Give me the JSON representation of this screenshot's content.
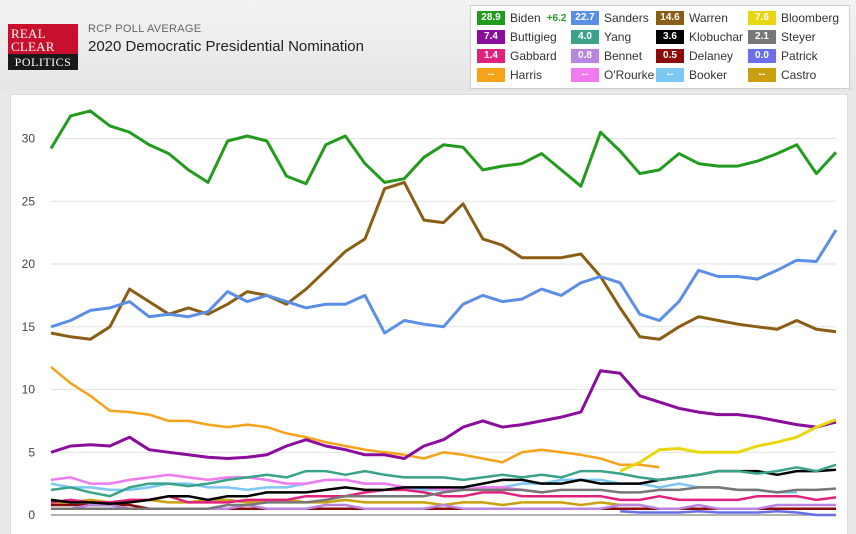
{
  "header": {
    "kicker": "RCP POLL AVERAGE",
    "title": "2020 Democratic Presidential Nomination",
    "logo_line1": "REAL",
    "logo_line2": "CLEAR",
    "logo_line3": "POLITICS"
  },
  "legend": [
    {
      "name": "Biden",
      "value": "28.9",
      "change": "+6.2",
      "color": "#239b1e"
    },
    {
      "name": "Sanders",
      "value": "22.7",
      "color": "#5b8fe6"
    },
    {
      "name": "Warren",
      "value": "14.6",
      "color": "#8b5e15"
    },
    {
      "name": "Bloomberg",
      "value": "7.6",
      "color": "#e8d70f"
    },
    {
      "name": "Buttigieg",
      "value": "7.4",
      "color": "#8a0d9b"
    },
    {
      "name": "Yang",
      "value": "4.0",
      "color": "#3aa38a"
    },
    {
      "name": "Klobuchar",
      "value": "3.6",
      "color": "#000000"
    },
    {
      "name": "Steyer",
      "value": "2.1",
      "color": "#777777"
    },
    {
      "name": "Gabbard",
      "value": "1.4",
      "color": "#e0227d"
    },
    {
      "name": "Bennet",
      "value": "0.8",
      "color": "#b985e0"
    },
    {
      "name": "Delaney",
      "value": "0.5",
      "color": "#8b0a0a"
    },
    {
      "name": "Patrick",
      "value": "0.0",
      "color": "#6a6fe8"
    },
    {
      "name": "Harris",
      "value": "--",
      "color": "#f7a21b"
    },
    {
      "name": "O'Rourke",
      "value": "--",
      "color": "#f07af0"
    },
    {
      "name": "Booker",
      "value": "--",
      "color": "#7cc8f2"
    },
    {
      "name": "Castro",
      "value": "--",
      "color": "#c9a00e"
    }
  ],
  "chart_data": {
    "type": "line",
    "ylim": [
      0,
      33
    ],
    "yticks": [
      "0",
      "5",
      "10",
      "15",
      "20",
      "25",
      "30"
    ],
    "grid": true,
    "legend_position": "top-right",
    "x": [
      0,
      1,
      2,
      3,
      4,
      5,
      6,
      7,
      8,
      9,
      10,
      11,
      12,
      13,
      14,
      15,
      16,
      17,
      18,
      19,
      20,
      21,
      22,
      23,
      24,
      25,
      26,
      27,
      28,
      29,
      30,
      31,
      32,
      33,
      34,
      35,
      36,
      37,
      38,
      39,
      40
    ],
    "series": [
      {
        "name": "Biden",
        "color": "#239b1e",
        "values": [
          29.2,
          31.8,
          32.2,
          31.0,
          30.5,
          29.5,
          28.8,
          27.5,
          26.5,
          29.8,
          30.2,
          29.8,
          27.0,
          26.4,
          29.5,
          30.2,
          28.0,
          26.5,
          26.8,
          28.5,
          29.5,
          29.3,
          27.5,
          27.8,
          28.0,
          28.8,
          27.5,
          26.2,
          30.5,
          29.0,
          27.2,
          27.5,
          28.8,
          28.0,
          27.8,
          27.8,
          28.2,
          28.8,
          29.5,
          27.2,
          28.9
        ]
      },
      {
        "name": "Sanders",
        "color": "#5b8fe6",
        "values": [
          15.0,
          15.5,
          16.3,
          16.5,
          17.0,
          15.8,
          16.0,
          15.8,
          16.2,
          17.8,
          17.0,
          17.5,
          17.0,
          16.5,
          16.8,
          16.8,
          17.5,
          14.5,
          15.5,
          15.2,
          15.0,
          16.8,
          17.5,
          17.0,
          17.2,
          18.0,
          17.5,
          18.5,
          19.0,
          18.5,
          16.0,
          15.5,
          17.0,
          19.5,
          19.0,
          19.0,
          18.8,
          19.5,
          20.3,
          20.2,
          22.7
        ]
      },
      {
        "name": "Warren",
        "color": "#8b5e15",
        "values": [
          14.5,
          14.2,
          14.0,
          15.0,
          18.0,
          17.0,
          16.0,
          16.5,
          16.0,
          16.8,
          17.8,
          17.5,
          16.8,
          18.0,
          19.5,
          21.0,
          22.0,
          26.0,
          26.5,
          23.5,
          23.3,
          24.8,
          22.0,
          21.5,
          20.5,
          20.5,
          20.5,
          20.8,
          19.0,
          16.5,
          14.2,
          14.0,
          15.0,
          15.8,
          15.5,
          15.2,
          15.0,
          14.8,
          15.5,
          14.8,
          14.6
        ]
      },
      {
        "name": "Bloomberg",
        "color": "#e8d70f",
        "values": [
          null,
          null,
          null,
          null,
          null,
          null,
          null,
          null,
          null,
          null,
          null,
          null,
          null,
          null,
          null,
          null,
          null,
          null,
          null,
          null,
          null,
          null,
          null,
          null,
          null,
          null,
          null,
          null,
          null,
          3.5,
          4.2,
          5.2,
          5.3,
          5.0,
          5.0,
          5.0,
          5.5,
          5.8,
          6.2,
          7.0,
          7.6
        ]
      },
      {
        "name": "Buttigieg",
        "color": "#8a0d9b",
        "values": [
          5.0,
          5.5,
          5.6,
          5.5,
          6.2,
          5.2,
          5.0,
          4.8,
          4.6,
          4.5,
          4.6,
          4.8,
          5.5,
          6.0,
          5.5,
          5.2,
          4.8,
          4.8,
          4.5,
          5.5,
          6.0,
          7.0,
          7.5,
          7.0,
          7.2,
          7.5,
          7.8,
          8.2,
          11.5,
          11.3,
          9.5,
          9.0,
          8.5,
          8.2,
          8.0,
          8.0,
          7.8,
          7.5,
          7.2,
          7.0,
          7.4
        ]
      },
      {
        "name": "Yang",
        "color": "#3aa38a",
        "values": [
          2.0,
          2.2,
          1.8,
          1.5,
          2.2,
          2.5,
          2.5,
          2.3,
          2.5,
          2.8,
          3.0,
          3.2,
          3.0,
          3.5,
          3.5,
          3.2,
          3.5,
          3.2,
          3.0,
          3.0,
          3.0,
          2.8,
          3.0,
          3.2,
          3.0,
          3.2,
          3.0,
          3.5,
          3.5,
          3.3,
          3.0,
          2.8,
          3.0,
          3.2,
          3.5,
          3.5,
          3.3,
          3.5,
          3.8,
          3.5,
          4.0
        ]
      },
      {
        "name": "Klobuchar",
        "color": "#000000",
        "values": [
          1.2,
          1.0,
          1.0,
          0.9,
          1.0,
          1.2,
          1.5,
          1.5,
          1.2,
          1.5,
          1.5,
          1.8,
          1.8,
          1.8,
          2.0,
          2.2,
          2.0,
          2.0,
          2.2,
          2.2,
          2.2,
          2.2,
          2.5,
          2.8,
          2.8,
          2.5,
          2.5,
          2.8,
          2.5,
          2.5,
          2.5,
          2.8,
          3.0,
          3.2,
          3.5,
          3.5,
          3.5,
          3.2,
          3.5,
          3.5,
          3.6
        ]
      },
      {
        "name": "Steyer",
        "color": "#777777",
        "values": [
          0.5,
          0.5,
          0.5,
          0.5,
          0.5,
          0.5,
          0.5,
          0.5,
          0.5,
          0.8,
          0.8,
          1.0,
          1.0,
          1.0,
          1.2,
          1.5,
          1.5,
          1.5,
          1.5,
          1.5,
          1.8,
          2.0,
          2.0,
          2.0,
          2.0,
          1.8,
          2.0,
          2.0,
          2.0,
          1.8,
          1.8,
          2.0,
          2.0,
          2.2,
          2.2,
          2.0,
          2.0,
          1.8,
          2.0,
          2.0,
          2.1
        ]
      },
      {
        "name": "Gabbard",
        "color": "#e0227d",
        "values": [
          1.0,
          1.2,
          1.0,
          1.0,
          1.2,
          1.2,
          1.5,
          1.0,
          1.0,
          1.0,
          1.2,
          1.2,
          1.2,
          1.5,
          1.5,
          1.5,
          1.8,
          2.0,
          2.0,
          1.8,
          1.5,
          1.5,
          1.8,
          1.8,
          1.5,
          1.5,
          1.5,
          1.5,
          1.5,
          1.2,
          1.2,
          1.5,
          1.2,
          1.2,
          1.2,
          1.2,
          1.5,
          1.5,
          1.5,
          1.2,
          1.4
        ]
      },
      {
        "name": "Bennet",
        "color": "#b985e0",
        "values": [
          0.5,
          0.5,
          0.8,
          0.8,
          0.5,
          0.5,
          0.5,
          0.5,
          0.5,
          0.5,
          0.8,
          0.5,
          0.5,
          0.5,
          0.8,
          0.8,
          0.5,
          0.5,
          0.5,
          0.5,
          0.8,
          0.5,
          0.5,
          0.5,
          0.5,
          0.5,
          0.5,
          0.5,
          0.5,
          0.8,
          0.8,
          0.5,
          0.5,
          0.8,
          0.5,
          0.5,
          0.5,
          0.8,
          0.8,
          0.8,
          0.8
        ]
      },
      {
        "name": "Delaney",
        "color": "#8b0a0a",
        "values": [
          0.8,
          0.8,
          0.8,
          0.8,
          0.8,
          0.5,
          0.5,
          0.5,
          0.5,
          0.5,
          0.5,
          0.5,
          0.5,
          0.5,
          0.5,
          0.5,
          0.5,
          0.5,
          0.5,
          0.5,
          0.5,
          0.5,
          0.5,
          0.5,
          0.5,
          0.5,
          0.5,
          0.5,
          0.5,
          0.5,
          0.5,
          0.5,
          0.5,
          0.5,
          0.5,
          0.5,
          0.5,
          0.5,
          0.5,
          0.5,
          0.5
        ]
      },
      {
        "name": "Patrick",
        "color": "#6a6fe8",
        "values": [
          null,
          null,
          null,
          null,
          null,
          null,
          null,
          null,
          null,
          null,
          null,
          null,
          null,
          null,
          null,
          null,
          null,
          null,
          null,
          null,
          null,
          null,
          null,
          null,
          null,
          null,
          null,
          null,
          null,
          0.3,
          0.2,
          0.2,
          0.2,
          0.3,
          0.2,
          0.2,
          0.2,
          0.3,
          0.2,
          0.0,
          0.0
        ]
      },
      {
        "name": "Harris",
        "color": "#f7a21b",
        "values": [
          11.8,
          10.5,
          9.5,
          8.3,
          8.2,
          8.0,
          7.5,
          7.5,
          7.2,
          7.0,
          7.2,
          7.0,
          6.5,
          6.2,
          5.8,
          5.5,
          5.2,
          5.0,
          4.8,
          4.5,
          5.0,
          4.8,
          4.5,
          4.2,
          5.0,
          5.2,
          5.0,
          4.8,
          4.5,
          4.0,
          4.0,
          3.8,
          null,
          null,
          null,
          null,
          null,
          null,
          null,
          null,
          null
        ]
      },
      {
        "name": "O'Rourke",
        "color": "#f07af0",
        "values": [
          2.8,
          3.0,
          2.5,
          2.5,
          2.8,
          3.0,
          3.2,
          3.0,
          2.8,
          3.0,
          3.0,
          2.8,
          2.5,
          2.5,
          2.8,
          2.8,
          2.5,
          2.5,
          2.2,
          2.2,
          2.0,
          2.0,
          2.2,
          2.2,
          2.0,
          1.8,
          null,
          null,
          null,
          null,
          null,
          null,
          null,
          null,
          null,
          null,
          null,
          null,
          null,
          null,
          null
        ]
      },
      {
        "name": "Booker",
        "color": "#7cc8f2",
        "values": [
          2.5,
          2.2,
          2.2,
          2.0,
          2.0,
          2.2,
          2.5,
          2.5,
          2.2,
          2.2,
          2.0,
          2.2,
          2.2,
          2.5,
          2.8,
          2.8,
          2.5,
          2.5,
          2.2,
          2.0,
          2.0,
          2.0,
          2.2,
          2.2,
          2.5,
          2.5,
          2.8,
          2.8,
          2.8,
          2.5,
          2.5,
          2.2,
          2.5,
          2.2,
          2.2,
          2.0,
          2.0,
          1.8,
          1.8,
          null,
          null
        ]
      },
      {
        "name": "Castro",
        "color": "#c9a00e",
        "values": [
          1.0,
          1.0,
          1.2,
          1.0,
          1.0,
          1.2,
          1.0,
          1.0,
          1.2,
          1.2,
          1.0,
          1.2,
          1.2,
          1.0,
          1.0,
          1.2,
          1.0,
          1.0,
          1.0,
          1.0,
          0.8,
          1.0,
          1.0,
          0.8,
          1.0,
          1.0,
          1.0,
          0.8,
          1.0,
          0.8,
          0.8,
          null,
          null,
          null,
          null,
          null,
          null,
          null,
          null,
          null,
          null
        ]
      }
    ]
  }
}
